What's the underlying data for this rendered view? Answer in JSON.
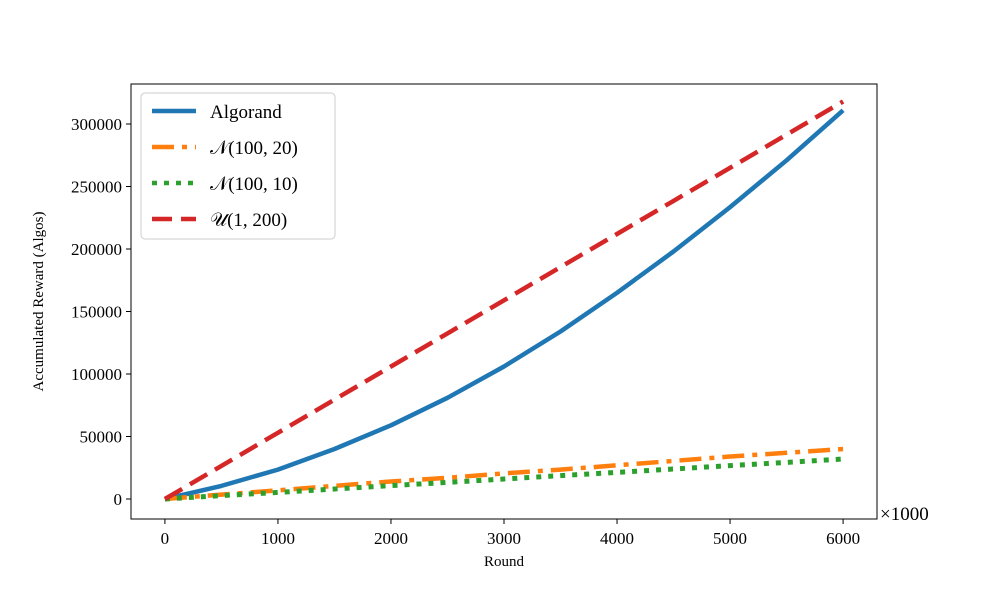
{
  "chart_data": {
    "type": "line",
    "xlabel": "Round",
    "ylabel": "Accumulated Reward (Algos)",
    "x_scale_label": "×1000",
    "xlim": [
      -300,
      6300
    ],
    "ylim": [
      -16000,
      332000
    ],
    "x_ticks": [
      "0",
      "1000",
      "2000",
      "3000",
      "4000",
      "5000",
      "6000"
    ],
    "y_ticks": [
      "0",
      "50000",
      "100000",
      "150000",
      "200000",
      "250000",
      "300000"
    ],
    "legend_position": "top-left",
    "x": [
      0,
      500,
      1000,
      1500,
      2000,
      2500,
      3000,
      3500,
      4000,
      4500,
      5000,
      5500,
      6000
    ],
    "series": [
      {
        "name": "Algorand",
        "color": "#1f77b4",
        "style": "solid",
        "values": [
          0,
          10500,
          23500,
          40000,
          59000,
          81000,
          106000,
          134000,
          165000,
          198000,
          233500,
          271000,
          311000
        ]
      },
      {
        "name": "𝒩(100, 20)",
        "color": "#ff7f0e",
        "style": "dashdot",
        "values": [
          0,
          3500,
          7000,
          10500,
          14000,
          17000,
          20500,
          23500,
          27000,
          30500,
          34000,
          37000,
          40000
        ]
      },
      {
        "name": "𝒩(100, 10)",
        "color": "#2ca02c",
        "style": "dotted",
        "values": [
          0,
          2700,
          5300,
          8000,
          10700,
          13300,
          16000,
          18700,
          21300,
          24000,
          26700,
          29300,
          32000
        ]
      },
      {
        "name": "𝒰(1, 200)",
        "color": "#d62728",
        "style": "dashed",
        "values": [
          0,
          26500,
          53000,
          79500,
          106000,
          132500,
          159000,
          185500,
          212000,
          238500,
          265000,
          291500,
          318000
        ]
      }
    ]
  }
}
